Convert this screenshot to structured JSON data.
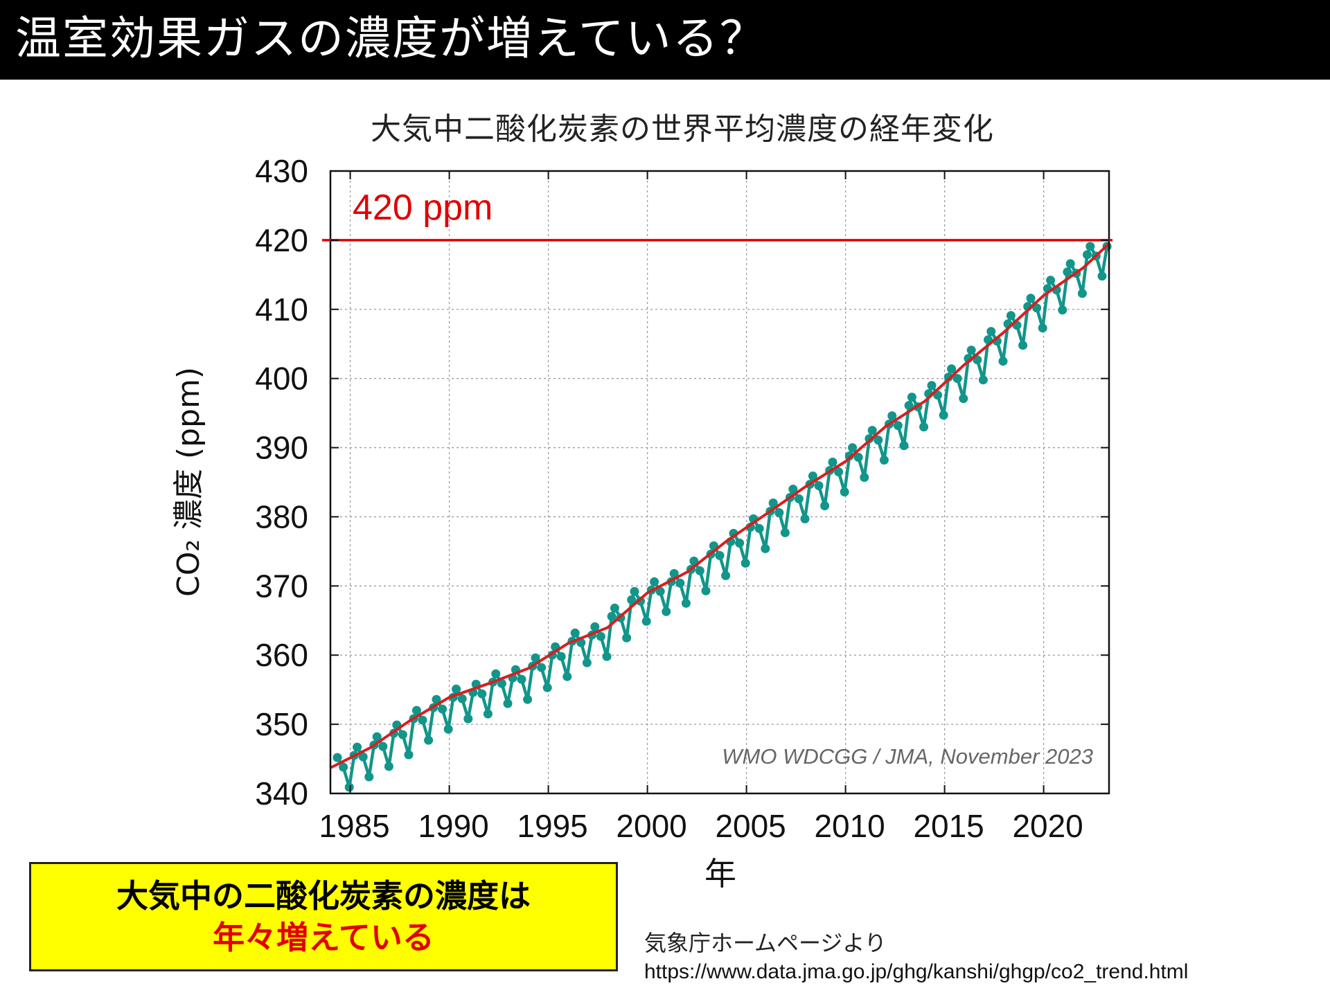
{
  "slide": {
    "title": "温室効果ガスの濃度が増えている？",
    "callout_line1": "大気中の二酸化炭素の濃度は",
    "callout_line2": "年々増えている",
    "source_label": "気象庁ホームページより",
    "source_url": "https://www.data.jma.go.jp/ghg/kanshi/ghgp/co2_trend.html"
  },
  "chart_data": {
    "type": "line",
    "title": "大気中二酸化炭素の世界平均濃度の経年変化",
    "xlabel": "年",
    "ylabel": "CO₂ 濃度 (ppm)",
    "credit": "WMO WDCGG / JMA, November 2023",
    "xlim": [
      1984,
      2023.3
    ],
    "ylim": [
      340,
      430
    ],
    "xticks": [
      1985,
      1990,
      1995,
      2000,
      2005,
      2010,
      2015,
      2020
    ],
    "yticks": [
      340,
      350,
      360,
      370,
      380,
      390,
      400,
      410,
      420,
      430
    ],
    "grid": true,
    "reference_line": {
      "label": "420 ppm",
      "value": 420,
      "color": "#e00000"
    },
    "colors": {
      "monthly": "#12958a",
      "trend": "#d42020"
    },
    "series": [
      {
        "kind": "trend",
        "x": [
          1984,
          1986,
          1988,
          1990,
          1992,
          1994,
          1996,
          1998,
          2000,
          2002,
          2004,
          2006,
          2008,
          2010,
          2012,
          2014,
          2016,
          2018,
          2020,
          2022,
          2023.3
        ],
        "y": [
          343.7,
          346.6,
          350.5,
          353.9,
          355.9,
          358.1,
          361.7,
          364.0,
          369.0,
          372.0,
          376.5,
          380.4,
          384.4,
          388.0,
          393.0,
          396.7,
          402.0,
          406.7,
          412.0,
          416.0,
          419.5
        ]
      },
      {
        "kind": "monthly",
        "x": [
          1984,
          1985,
          1986,
          1987,
          1988,
          1989,
          1990,
          1991,
          1992,
          1993,
          1994,
          1995,
          1996,
          1997,
          1998,
          1999,
          2000,
          2001,
          2002,
          2003,
          2004,
          2005,
          2006,
          2007,
          2008,
          2009,
          2010,
          2011,
          2012,
          2013,
          2014,
          2015,
          2016,
          2017,
          2018,
          2019,
          2020,
          2021,
          2022,
          2023
        ],
        "y": [
          345.2,
          346.7,
          348.2,
          349.9,
          352.0,
          353.6,
          355.1,
          355.8,
          357.3,
          357.9,
          359.6,
          361.2,
          363.2,
          364.1,
          366.8,
          369.2,
          370.6,
          371.8,
          373.6,
          375.8,
          377.6,
          379.7,
          382.0,
          384.0,
          385.9,
          387.9,
          390.0,
          392.5,
          394.6,
          397.3,
          399.0,
          401.4,
          404.1,
          406.8,
          409.1,
          411.6,
          414.2,
          416.6,
          419.1,
          420.3
        ]
      }
    ]
  }
}
